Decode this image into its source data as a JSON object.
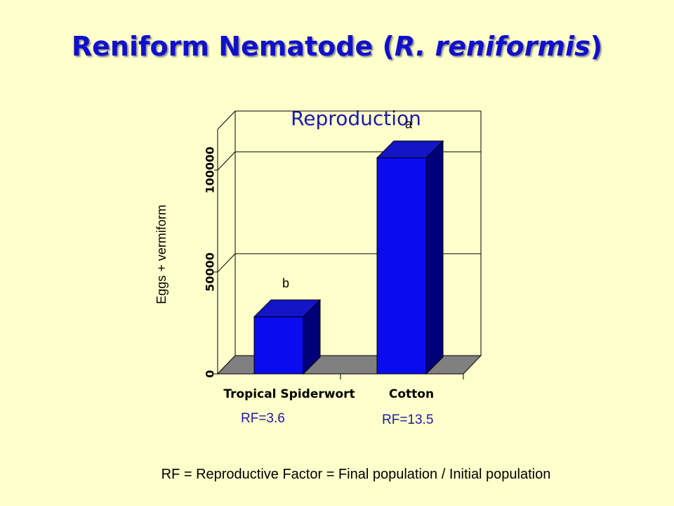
{
  "slide": {
    "title_main": "Reniform Nematode (",
    "title_italic": "R. reniformis",
    "title_end": ")",
    "footnote": "RF = Reproductive Factor = Final population / Initial population"
  },
  "chart_data": {
    "type": "bar",
    "title": "Reproduction",
    "xlabel": "",
    "ylabel": "Eggs + vermiform",
    "categories": [
      "Tropical Spiderwort",
      "Cotton"
    ],
    "values": [
      28000,
      106000
    ],
    "significance_letters": [
      "b",
      "a"
    ],
    "rf_labels": [
      "RF=3.6",
      "RF=13.5"
    ],
    "yticks": [
      0,
      50000,
      100000
    ],
    "ylim": [
      0,
      120000
    ],
    "grid": true,
    "legend": "none",
    "style": "3d",
    "colors": {
      "bar_front": "#0b0bf0",
      "bar_side": "#00007a",
      "bar_top": "#1515c8",
      "floor": "#808080",
      "text": "#1a1aa6"
    }
  }
}
